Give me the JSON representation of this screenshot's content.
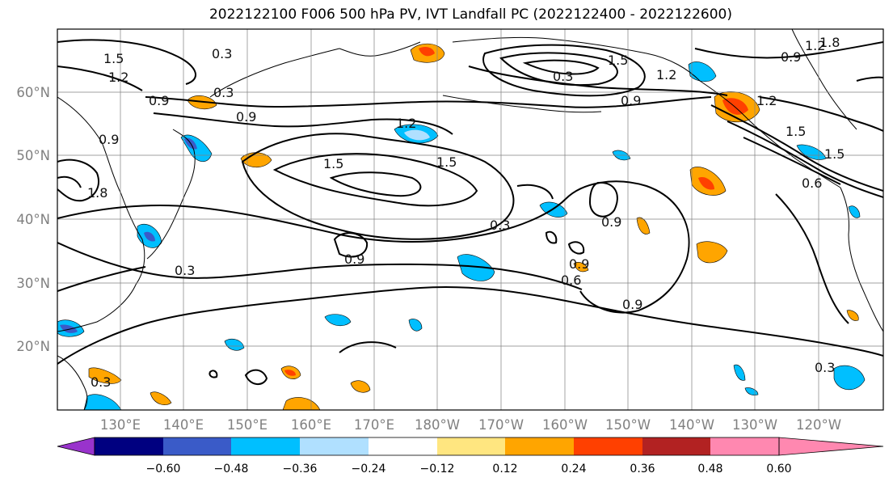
{
  "title": "2022122100 F006 500 hPa PV, IVT Landfall PC (2022122400 - 2022122600)",
  "lat_labels": [
    "60°N",
    "50°N",
    "40°N",
    "30°N",
    "20°N"
  ],
  "lon_labels": [
    "130°E",
    "140°E",
    "150°E",
    "160°E",
    "170°E",
    "180°W",
    "170°W",
    "160°W",
    "150°W",
    "140°W",
    "130°W",
    "120°W"
  ],
  "colorbar": {
    "ticks": [
      "−0.60",
      "−0.48",
      "−0.36",
      "−0.24",
      "−0.12",
      "0.12",
      "0.24",
      "0.36",
      "0.48",
      "0.60"
    ],
    "colors": [
      "#9933cc",
      "#000080",
      "#3a5bc8",
      "#00bfff",
      "#b0e0ff",
      "#ffffff",
      "#ffe680",
      "#ffa500",
      "#ff4000",
      "#b22222",
      "#ff88b0"
    ]
  },
  "contour_labels": [
    "1.5",
    "1.2",
    "0.3",
    "0.3",
    "0.9",
    "0.9",
    "0.9",
    "0.9",
    "1.2",
    "1.5",
    "1.5",
    "1.5",
    "0.3",
    "0.9",
    "0.9",
    "0.3",
    "0.6",
    "0.9",
    "1.5",
    "1.2",
    "0.9",
    "1.2",
    "1.5",
    "1.8",
    "0.6",
    "0.9",
    "1.2",
    "1.8",
    "0.3",
    "0.3",
    "0.3"
  ]
}
